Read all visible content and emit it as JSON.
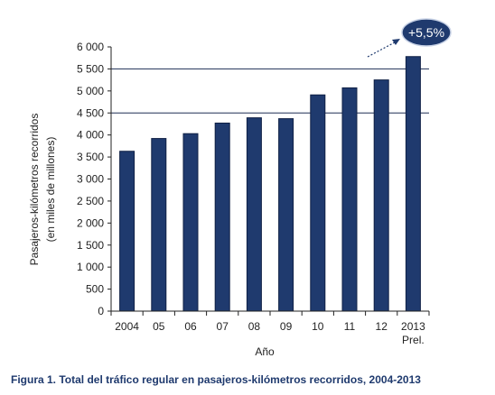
{
  "caption": "Figura 1. Total del tráfico regular en pasajeros-kilómetros recorridos, 2004-2013",
  "colors": {
    "bar": "#1f3a6e",
    "grid": "#1f2f55",
    "badge": "#1f3a6e",
    "caption": "#1f3a6e"
  },
  "chart_data": {
    "type": "bar",
    "categories": [
      "2004",
      "05",
      "06",
      "07",
      "08",
      "09",
      "10",
      "11",
      "12",
      "2013"
    ],
    "category_sublabels": [
      "",
      "",
      "",
      "",
      "",
      "",
      "",
      "",
      "",
      "Prel."
    ],
    "values": [
      3630,
      3920,
      4030,
      4270,
      4390,
      4370,
      4910,
      5070,
      5250,
      5780
    ],
    "xlabel": "Año",
    "ylabel_lines": [
      "Pasajeros-kilómetros recorridos",
      "(en miles de millones)"
    ],
    "ylim": [
      0,
      6000
    ],
    "yticks": [
      0,
      500,
      1000,
      1500,
      2000,
      2500,
      3000,
      3500,
      4000,
      4500,
      5000,
      5500,
      6000
    ],
    "ytick_labels": [
      "0",
      "500",
      "1 000",
      "1 500",
      "2 000",
      "2 500",
      "3 000",
      "3 500",
      "4 000",
      "4 500",
      "5 000",
      "5 500",
      "6 000"
    ],
    "grid_values": [
      4500,
      5500
    ],
    "annotation": "+5,5%",
    "legend": "none"
  }
}
